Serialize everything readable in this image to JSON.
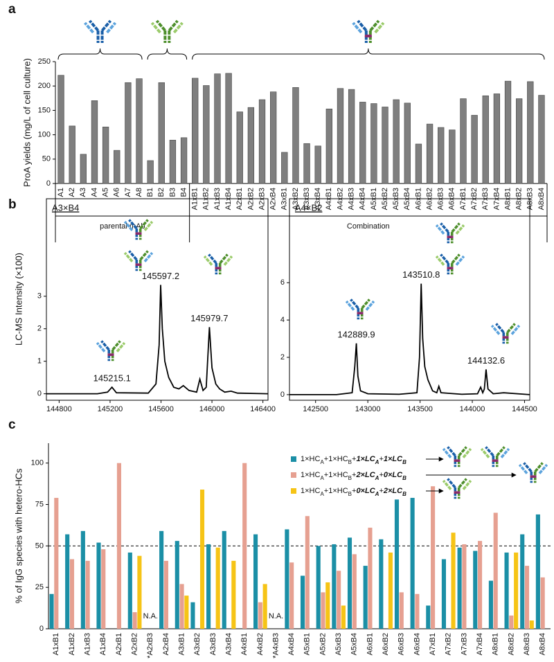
{
  "chart_data": [
    {
      "panel": "a",
      "type": "bar",
      "ylabel": "ProA yields (mg/L of cell culture)",
      "categories": [
        "A1",
        "A2",
        "A3",
        "A4",
        "A5",
        "A6",
        "A7",
        "A8",
        "B1",
        "B2",
        "B3",
        "B4",
        "A1xB1",
        "A1xB2",
        "A1xB3",
        "A1xB4",
        "A2xB1",
        "A2xB2",
        "A2xB3",
        "A2xB4",
        "A3xB1",
        "A3xB2",
        "A3xB3",
        "A3xB4",
        "A4xB1",
        "A4xB2",
        "A4xB3",
        "A4xB4",
        "A5xB1",
        "A5xB2",
        "A5xB3",
        "A5xB4",
        "A6xB1",
        "A6xB2",
        "A6xB3",
        "A6xB4",
        "A7xB1",
        "A7xB2",
        "A7xB3",
        "A7xB4",
        "A8xB1",
        "A8xB2",
        "A8xB3",
        "A8xB4"
      ],
      "values": [
        222,
        118,
        60,
        170,
        116,
        68,
        207,
        215,
        47,
        207,
        89,
        94,
        216,
        201,
        225,
        226,
        147,
        156,
        172,
        188,
        64,
        197,
        82,
        77,
        153,
        195,
        193,
        167,
        164,
        157,
        172,
        165,
        81,
        122,
        115,
        110,
        174,
        140,
        180,
        184,
        210,
        174,
        209,
        181
      ],
      "color": "#7f7f7f",
      "ylim": [
        0,
        250
      ],
      "yticks": [
        0,
        50,
        100,
        150,
        200,
        250
      ],
      "group_labels": [
        "parental mAb",
        "Combination"
      ]
    },
    {
      "panel": "b",
      "type": "line",
      "title": "A3×B4",
      "ylabel": "LC-MS Intensity (×100)",
      "x": [
        144700,
        145100,
        145180,
        145215,
        145250,
        145500,
        145560,
        145585,
        145597,
        145610,
        145630,
        145660,
        145700,
        145740,
        145775,
        145820,
        145880,
        145905,
        145930,
        145955,
        145980,
        146000,
        146030,
        146060,
        146100,
        146150,
        146200,
        146440
      ],
      "values": [
        0,
        0,
        0.05,
        0.2,
        0.03,
        0.02,
        0.3,
        1.5,
        3.35,
        2.0,
        1.0,
        0.5,
        0.2,
        0.15,
        0.25,
        0.1,
        0.05,
        0.45,
        0.1,
        0.2,
        2.05,
        0.8,
        0.3,
        0.15,
        0.05,
        0.08,
        0.02,
        0
      ],
      "color": "#000000",
      "xlim": [
        144700,
        146440
      ],
      "xticks": [
        144800,
        145200,
        145600,
        146000,
        146400
      ],
      "ylim": [
        -0.2,
        6
      ],
      "yticks": [
        0,
        1,
        2,
        3
      ],
      "peak_labels": [
        145215.1,
        145597.2,
        145979.7
      ]
    },
    {
      "type": "line",
      "title": "A4×B2",
      "x": [
        142250,
        142700,
        142850,
        142875,
        142890,
        142905,
        142930,
        143000,
        143300,
        143470,
        143495,
        143511,
        143525,
        143545,
        143575,
        143620,
        143660,
        143680,
        143700,
        143900,
        144050,
        144080,
        144100,
        144115,
        144132,
        144150,
        144200,
        144300,
        144550
      ],
      "values": [
        0,
        0,
        0.1,
        1.5,
        2.75,
        1.0,
        0.2,
        0.05,
        0.02,
        0.1,
        2.0,
        5.95,
        3.0,
        1.5,
        0.8,
        0.2,
        0.1,
        0.45,
        0.1,
        0.02,
        0.05,
        0.4,
        0.1,
        0.3,
        1.35,
        0.3,
        0.05,
        0.1,
        0
      ],
      "color": "#000000",
      "xlim": [
        142250,
        144550
      ],
      "xticks": [
        142500,
        143000,
        143500,
        144000,
        144500
      ],
      "ylim": [
        -0.3,
        10.5
      ],
      "yticks": [
        0,
        2,
        4,
        6
      ],
      "peak_labels": [
        142889.9,
        143510.8,
        144132.6
      ]
    },
    {
      "panel": "c",
      "type": "bar",
      "ylabel": "% of IgG species with hetero-HCs",
      "categories": [
        "A1xB1",
        "A1xB2",
        "A1xB3",
        "A1xB4",
        "A2xB1",
        "A2xB2",
        "*A2xB3",
        "A2xB4",
        "A3xB1",
        "A3xB2",
        "A3xB3",
        "A3xB4",
        "A4xB1",
        "A4xB2",
        "*A4xB3",
        "A4xB4",
        "A5xB1",
        "A5xB2",
        "A5xB3",
        "A5xB4",
        "A6xB1",
        "A6xB2",
        "A6xB3",
        "A6xB4",
        "A7xB1",
        "A7xB2",
        "A7xB3",
        "A7xB4",
        "A8xB1",
        "A8xB2",
        "A8xB3",
        "A8xB4"
      ],
      "series": [
        {
          "name": "1×HCA+1×HCB+1×LCA+1×LCB",
          "color": "#1b8fa6",
          "values": [
            21,
            57,
            59,
            52,
            0,
            46,
            null,
            59,
            53,
            16,
            51,
            59,
            0,
            57,
            null,
            60,
            32,
            50,
            51,
            55,
            38,
            54,
            78,
            79,
            14,
            42,
            49,
            47,
            29,
            46,
            57,
            69
          ]
        },
        {
          "name": "1×HCA+1×HCB+2×LCA+0×LCB",
          "color": "#e6a091",
          "values": [
            79,
            42,
            41,
            48,
            100,
            10,
            null,
            41,
            27,
            0,
            0,
            0,
            100,
            16,
            null,
            40,
            68,
            22,
            35,
            45,
            61,
            0,
            22,
            21,
            86,
            0,
            51,
            53,
            70,
            8,
            38,
            31
          ]
        },
        {
          "name": "1×HCA+1×HCB+0×LCA+2×LCB",
          "color": "#f6c416",
          "values": [
            0,
            0,
            0,
            0,
            0,
            44,
            null,
            0,
            20,
            84,
            49,
            41,
            0,
            27,
            null,
            0,
            0,
            28,
            14,
            0,
            0,
            46,
            0,
            0,
            0,
            58,
            0,
            0,
            0,
            46,
            5,
            0
          ]
        }
      ],
      "ylim": [
        0,
        112
      ],
      "yticks": [
        0,
        25,
        50,
        75,
        100
      ],
      "reference_line": 50,
      "na_label": "N.A.",
      "legend": "top-right"
    }
  ]
}
